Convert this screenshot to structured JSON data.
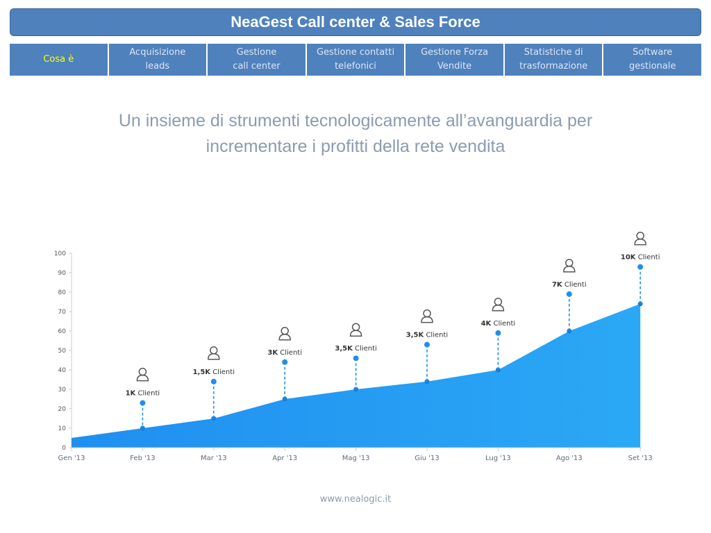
{
  "header": {
    "title": "NeaGest Call center & Sales Force"
  },
  "nav": {
    "items": [
      {
        "label": "Cosa è",
        "active": true
      },
      {
        "label": "Acquisizione\nleads",
        "active": false
      },
      {
        "label": "Gestione\ncall center",
        "active": false
      },
      {
        "label": "Gestione contatti\ntelefonici",
        "active": false
      },
      {
        "label": "Gestione Forza\nVendite",
        "active": false
      },
      {
        "label": "Statistiche di\ntrasformazione",
        "active": false
      },
      {
        "label": "Software\ngestionale",
        "active": false
      }
    ]
  },
  "subtitle": {
    "line1": "Un insieme di strumenti tecnologicamente all’avanguardia per",
    "line2": "incrementare i profitti della rete vendita"
  },
  "footer": {
    "url": "www.nealogic.it"
  },
  "colors": {
    "header": "#4f81bd",
    "active_tab_text": "#ffff00",
    "area_start": "#1f8ff0",
    "area_end": "#2ba8f5",
    "marker": "#1f8ff0",
    "icon": "#555555"
  },
  "chart_data": {
    "type": "area",
    "categories": [
      "Gen '13",
      "Feb '13",
      "Mar '13",
      "Apr '13",
      "Mag '13",
      "Giu '13",
      "Lug '13",
      "Ago '13",
      "Set '13"
    ],
    "values": [
      5,
      10,
      15,
      25,
      30,
      34,
      40,
      60,
      74
    ],
    "ylim": [
      0,
      100
    ],
    "yticks": [
      0,
      10,
      20,
      30,
      40,
      50,
      60,
      70,
      80,
      90,
      100
    ],
    "grid": false,
    "annotations": [
      {
        "category": "Feb '13",
        "value": 23,
        "bold": "1K",
        "text": "Clienti",
        "icon": "user-icon"
      },
      {
        "category": "Mar '13",
        "value": 34,
        "bold": "1,5K",
        "text": "Clienti",
        "icon": "user-icon"
      },
      {
        "category": "Apr '13",
        "value": 44,
        "bold": "3K",
        "text": "Clienti",
        "icon": "user-icon"
      },
      {
        "category": "Mag '13",
        "value": 46,
        "bold": "3,5K",
        "text": "Clienti",
        "icon": "user-icon"
      },
      {
        "category": "Giu '13",
        "value": 53,
        "bold": "3,5K",
        "text": "Clienti",
        "icon": "user-icon"
      },
      {
        "category": "Lug '13",
        "value": 59,
        "bold": "4K",
        "text": "Clienti",
        "icon": "user-icon"
      },
      {
        "category": "Ago '13",
        "value": 79,
        "bold": "7K",
        "text": "Clienti",
        "icon": "user-icon"
      },
      {
        "category": "Set '13",
        "value": 93,
        "bold": "10K",
        "text": "Clienti",
        "icon": "user-icon"
      }
    ]
  }
}
